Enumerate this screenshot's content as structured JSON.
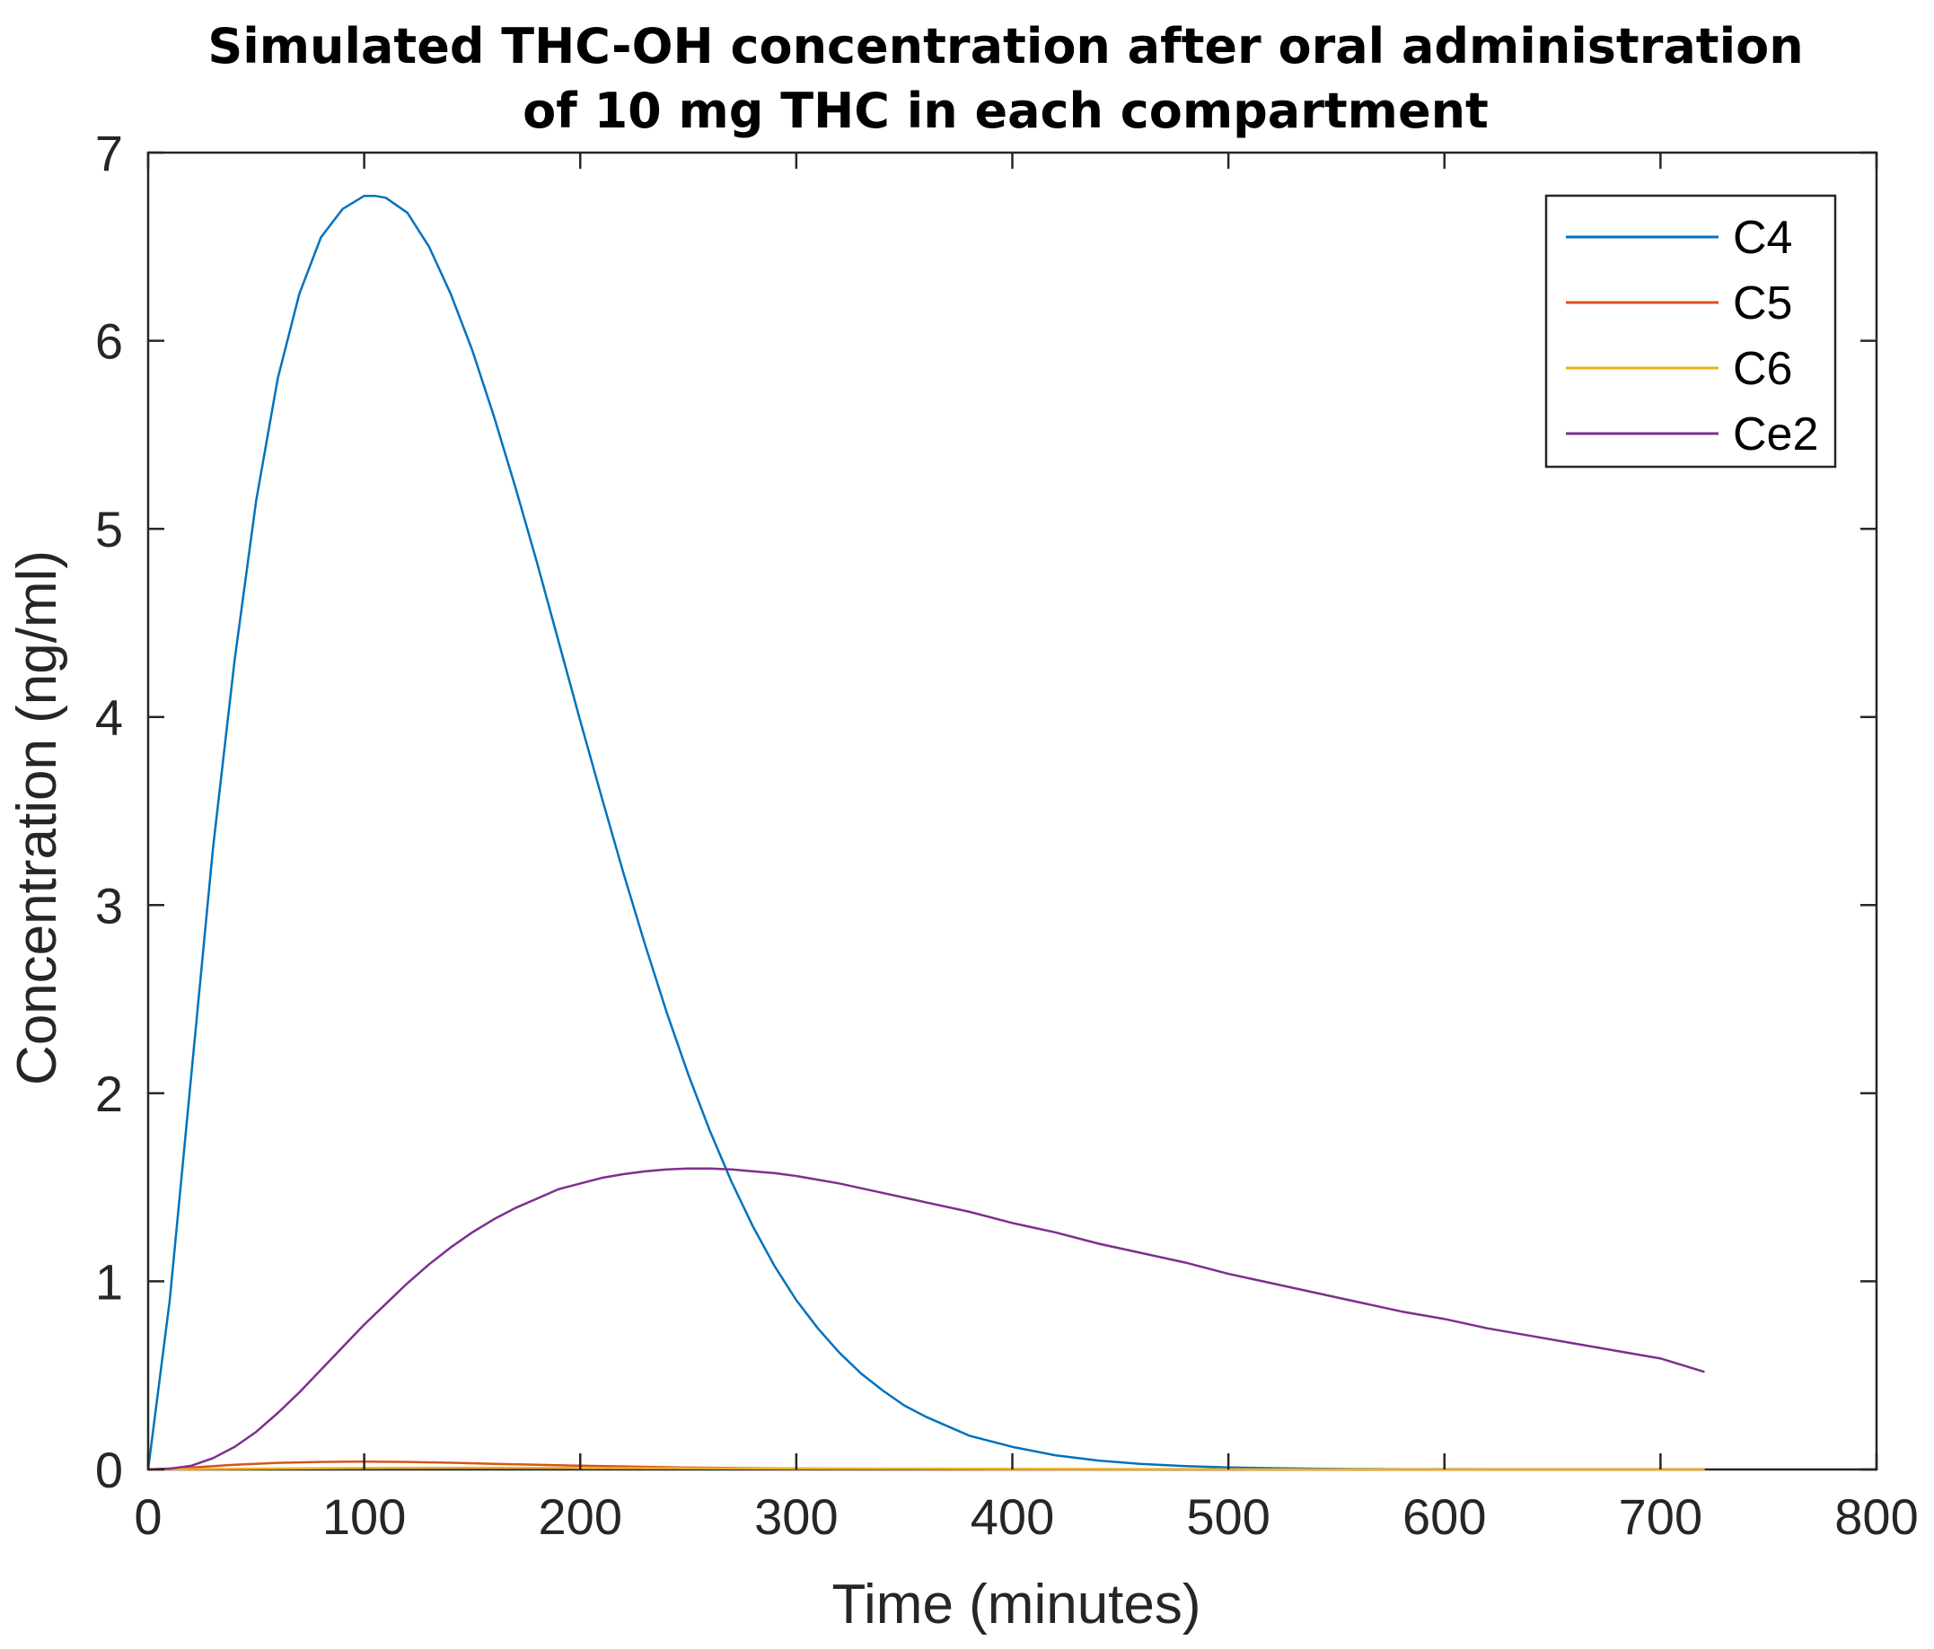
{
  "chart_data": {
    "type": "line",
    "title_lines": [
      "Simulated THC-OH concentration after oral administration",
      "of 10 mg THC in each compartment"
    ],
    "xlabel": "Time (minutes)",
    "ylabel": "Concentration (ng/ml)",
    "xlim": [
      0,
      800
    ],
    "ylim": [
      0,
      7
    ],
    "xticks": [
      0,
      100,
      200,
      300,
      400,
      500,
      600,
      700,
      800
    ],
    "yticks": [
      0,
      1,
      2,
      3,
      4,
      5,
      6,
      7
    ],
    "grid": false,
    "legend_position": "top-right",
    "series": [
      {
        "name": "C4",
        "color": "#0072BD",
        "x": [
          0,
          10,
          20,
          30,
          40,
          50,
          60,
          70,
          80,
          90,
          100,
          105,
          110,
          120,
          130,
          140,
          150,
          160,
          170,
          180,
          190,
          200,
          210,
          220,
          230,
          240,
          250,
          260,
          270,
          280,
          290,
          300,
          310,
          320,
          330,
          340,
          350,
          360,
          370,
          380,
          390,
          400,
          420,
          440,
          460,
          480,
          500,
          520,
          540,
          560,
          580,
          600,
          620,
          640,
          660,
          680,
          700,
          720
        ],
        "y": [
          0,
          0.9,
          2.1,
          3.3,
          4.3,
          5.15,
          5.8,
          6.25,
          6.55,
          6.7,
          6.77,
          6.77,
          6.76,
          6.68,
          6.5,
          6.25,
          5.95,
          5.6,
          5.22,
          4.82,
          4.4,
          3.98,
          3.57,
          3.17,
          2.79,
          2.43,
          2.1,
          1.8,
          1.53,
          1.29,
          1.08,
          0.9,
          0.75,
          0.62,
          0.51,
          0.42,
          0.34,
          0.28,
          0.23,
          0.18,
          0.15,
          0.12,
          0.075,
          0.047,
          0.029,
          0.018,
          0.011,
          0.007,
          0.004,
          0.0025,
          0.0015,
          0.0009,
          0.0006,
          0.0004,
          0.0002,
          0.0001,
          0.0001,
          0.0001
        ]
      },
      {
        "name": "C5",
        "color": "#D95319",
        "x": [
          0,
          20,
          40,
          60,
          80,
          100,
          120,
          140,
          160,
          180,
          200,
          250,
          300,
          350,
          400,
          500,
          600,
          720
        ],
        "y": [
          0,
          0.01,
          0.025,
          0.035,
          0.04,
          0.042,
          0.04,
          0.036,
          0.03,
          0.025,
          0.02,
          0.01,
          0.005,
          0.003,
          0.001,
          0,
          0,
          0
        ]
      },
      {
        "name": "C6",
        "color": "#EDB120",
        "x": [
          0,
          50,
          100,
          150,
          200,
          300,
          400,
          500,
          600,
          720
        ],
        "y": [
          0,
          0.004,
          0.008,
          0.009,
          0.008,
          0.005,
          0.003,
          0.001,
          0,
          0
        ]
      },
      {
        "name": "Ce2",
        "color": "#7E2F8E",
        "x": [
          0,
          10,
          20,
          30,
          40,
          50,
          60,
          70,
          80,
          90,
          100,
          110,
          120,
          130,
          140,
          150,
          160,
          170,
          180,
          190,
          200,
          210,
          220,
          230,
          240,
          250,
          260,
          270,
          280,
          290,
          300,
          320,
          340,
          360,
          380,
          400,
          420,
          440,
          460,
          480,
          500,
          520,
          540,
          560,
          580,
          600,
          620,
          640,
          660,
          680,
          700,
          720
        ],
        "y": [
          0,
          0.004,
          0.02,
          0.06,
          0.12,
          0.2,
          0.3,
          0.41,
          0.53,
          0.65,
          0.77,
          0.88,
          0.99,
          1.09,
          1.18,
          1.26,
          1.33,
          1.39,
          1.44,
          1.49,
          1.52,
          1.55,
          1.57,
          1.585,
          1.595,
          1.6,
          1.6,
          1.595,
          1.585,
          1.575,
          1.56,
          1.52,
          1.47,
          1.42,
          1.37,
          1.31,
          1.26,
          1.2,
          1.15,
          1.1,
          1.04,
          0.99,
          0.94,
          0.89,
          0.84,
          0.8,
          0.75,
          0.71,
          0.67,
          0.63,
          0.59,
          0.52
        ]
      }
    ]
  }
}
